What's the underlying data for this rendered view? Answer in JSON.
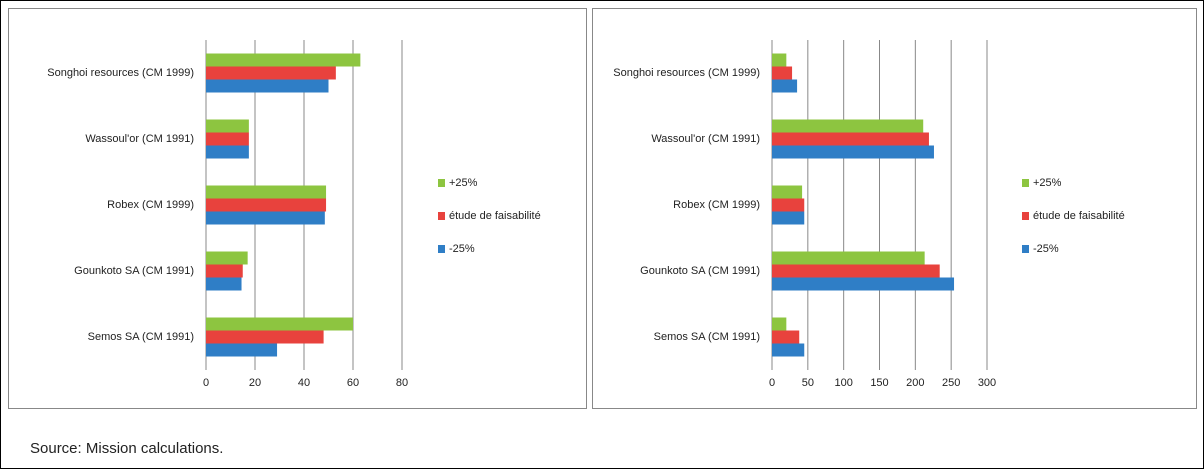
{
  "chart_data": [
    {
      "type": "bar",
      "orientation": "horizontal",
      "categories": [
        "Songhoi resources (CM 1999)",
        "Wassoul'or (CM 1991)",
        "Robex (CM 1999)",
        "Gounkoto SA (CM 1991)",
        "Semos SA (CM 1991)"
      ],
      "series": [
        {
          "name": "+25%",
          "color": "#8dc540",
          "values": [
            63,
            17.5,
            49,
            17,
            60
          ]
        },
        {
          "name": "étude de faisabilité",
          "color": "#e8423d",
          "values": [
            53,
            17.5,
            49,
            15,
            48
          ]
        },
        {
          "name": "-25%",
          "color": "#2f7ec6",
          "values": [
            50,
            17.5,
            48.5,
            14.5,
            29
          ]
        }
      ],
      "xlim": [
        0,
        80
      ],
      "xticks": [
        0,
        20,
        40,
        60,
        80
      ],
      "grid": true,
      "legend": "right"
    },
    {
      "type": "bar",
      "orientation": "horizontal",
      "categories": [
        "Songhoi resources (CM 1999)",
        "Wassoul'or (CM 1991)",
        "Robex (CM 1999)",
        "Gounkoto SA (CM 1991)",
        "Semos SA (CM 1991)"
      ],
      "series": [
        {
          "name": "+25%",
          "color": "#8dc540",
          "values": [
            20,
            211,
            42,
            213,
            20
          ]
        },
        {
          "name": "étude de faisabilité",
          "color": "#e8423d",
          "values": [
            28,
            219,
            45,
            234,
            38
          ]
        },
        {
          "name": "-25%",
          "color": "#2f7ec6",
          "values": [
            35,
            226,
            45,
            254,
            45
          ]
        }
      ],
      "xlim": [
        0,
        300
      ],
      "xticks": [
        0,
        50,
        100,
        150,
        200,
        250,
        300
      ],
      "grid": true,
      "legend": "right"
    }
  ],
  "source": "Source: Mission calculations."
}
